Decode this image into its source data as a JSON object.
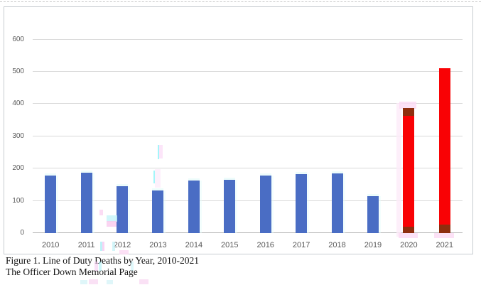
{
  "figure_caption": {
    "line1": "Figure 1. Line of Duty Deaths by Year, 2010-2021",
    "line2": "The Officer Down Memorial Page"
  },
  "chart_data": {
    "type": "bar",
    "title": "Line of Duty Deaths by Year, 2010-2021",
    "source": "The Officer Down Memorial Page",
    "categories": [
      "2010",
      "2011",
      "2012",
      "2013",
      "2014",
      "2015",
      "2016",
      "2017",
      "2018",
      "2019",
      "2020",
      "2021"
    ],
    "values": [
      178,
      187,
      145,
      132,
      163,
      165,
      178,
      182,
      186,
      114,
      387,
      512
    ],
    "xlabel": "",
    "ylabel": "",
    "ylim": [
      0,
      650
    ],
    "yticks": [
      0,
      100,
      200,
      300,
      400,
      500,
      600
    ],
    "grid": true,
    "legend": false,
    "bar_color_default": "#4a6dc4",
    "bar_color_highlight": "#f90205",
    "highlight_years": [
      "2020",
      "2021"
    ],
    "highlight_dark_color": "#8e2e0e",
    "highlight_dark_segments": {
      "2020": [
        [
          0,
          20
        ],
        [
          364,
          387
        ]
      ],
      "2021": [
        [
          0,
          26
        ]
      ]
    }
  },
  "colors": {
    "grid_line": "#d9d9d9",
    "axis_line": "#b3b3b3",
    "tick_label": "#595959",
    "chart_border": "#c7ccd1",
    "page_top_dashed_line": "#c9c9c9",
    "artifact_pink": "#fbd9f4",
    "artifact_cyan": "#aceef5"
  }
}
